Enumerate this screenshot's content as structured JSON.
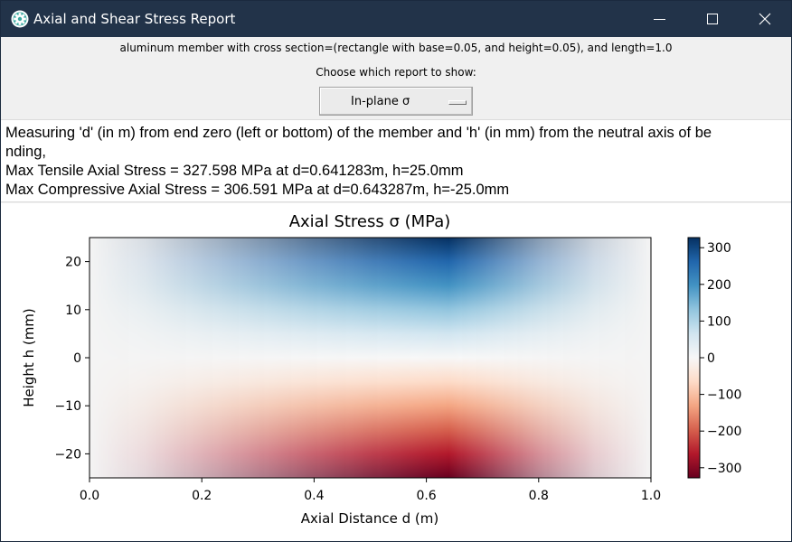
{
  "window": {
    "title": "Axial and Shear Stress Report",
    "app_icon": "gear-icon",
    "controls": {
      "minimize": "minimize-icon",
      "maximize": "maximize-icon",
      "close": "close-icon"
    }
  },
  "header": {
    "description": "aluminum member with cross section=(rectangle with base=0.05, and height=0.05), and length=1.0",
    "choose_label": "Choose which report to show:",
    "report_select": {
      "value": "In-plane σ"
    }
  },
  "info": {
    "line1": "Measuring 'd' (in m) from end zero (left or bottom) of the member and 'h' (in mm) from the neutral axis of be",
    "line2": "nding,",
    "line3": "Max Tensile Axial Stress = 327.598 MPa at d=0.641283m, h=25.0mm",
    "line4": "Max Compressive Axial Stress = 306.591 MPa at d=0.643287m, h=-25.0mm"
  },
  "colors": {
    "titlebar": "#223349",
    "colormap_stops": [
      "#67001f",
      "#b2182b",
      "#d6604d",
      "#f4a582",
      "#fddbc7",
      "#f7f7f7",
      "#d1e5f0",
      "#92c5de",
      "#4393c3",
      "#2166ac",
      "#053061"
    ]
  },
  "chart_data": {
    "type": "heatmap",
    "title": "Axial Stress σ (MPa)",
    "xlabel": "Axial Distance d (m)",
    "ylabel": "Height h (mm)",
    "xlim": [
      0.0,
      1.0
    ],
    "ylim": [
      -25,
      25
    ],
    "xticks": [
      "0.0",
      "0.2",
      "0.4",
      "0.6",
      "0.8",
      "1.0"
    ],
    "yticks": [
      "20",
      "10",
      "0",
      "−10",
      "−20"
    ],
    "colorbar": {
      "ticks": [
        "300",
        "200",
        "100",
        "0",
        "−100",
        "−200",
        "−300"
      ],
      "range": [
        -327.598,
        327.598
      ],
      "colormap": "RdBu"
    },
    "max_stress_location": {
      "d": 0.64,
      "max_tensile": 327.598,
      "max_compressive": 306.591
    },
    "stress_profile": {
      "d": [
        0.0,
        0.1,
        0.2,
        0.3,
        0.4,
        0.5,
        0.6,
        0.64,
        0.7,
        0.8,
        0.9,
        1.0
      ],
      "stress_at_top": [
        0,
        25,
        90,
        155,
        215,
        270,
        315,
        327.598,
        260,
        150,
        60,
        0
      ]
    }
  }
}
